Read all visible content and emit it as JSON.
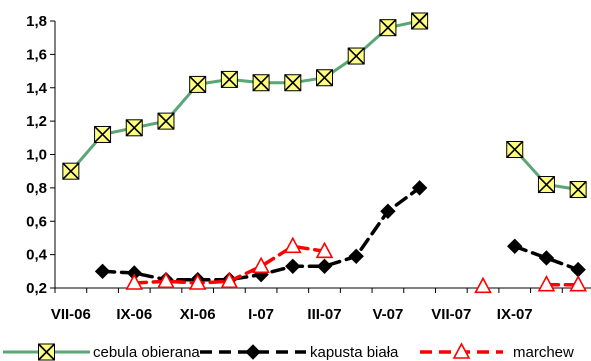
{
  "chart_data": {
    "type": "line",
    "x_tick_labels": [
      "VII-06",
      "IX-06",
      "XI-06",
      "I-07",
      "III-07",
      "V-07",
      "VII-07",
      "IX-07"
    ],
    "ylim": [
      0.2,
      1.8
    ],
    "y_ticks": [
      "0,2",
      "0,4",
      "0,6",
      "0,8",
      "1,0",
      "1,2",
      "1,4",
      "1,6",
      "1,8"
    ],
    "grid": false,
    "legend_position": "bottom",
    "series": [
      {
        "name": "cebula obierana",
        "color": "#5aa675",
        "marker": "cross-square",
        "style": "solid",
        "values": [
          0.9,
          1.12,
          1.16,
          1.2,
          1.42,
          1.45,
          1.43,
          1.43,
          1.46,
          1.59,
          1.76,
          1.8,
          null,
          null,
          1.03,
          0.82,
          0.79
        ]
      },
      {
        "name": "kapusta biała",
        "color": "#000000",
        "marker": "diamond",
        "style": "dashed",
        "values": [
          null,
          0.3,
          0.29,
          0.25,
          0.25,
          0.25,
          0.28,
          0.33,
          0.33,
          0.39,
          0.66,
          0.8,
          null,
          null,
          0.45,
          0.38,
          0.31
        ]
      },
      {
        "name": "marchew",
        "color": "#ff0000",
        "marker": "triangle",
        "style": "dashed",
        "values": [
          null,
          null,
          0.23,
          0.24,
          0.23,
          0.24,
          0.33,
          0.45,
          0.42,
          null,
          null,
          null,
          null,
          0.21,
          null,
          0.22,
          0.22
        ]
      }
    ]
  }
}
